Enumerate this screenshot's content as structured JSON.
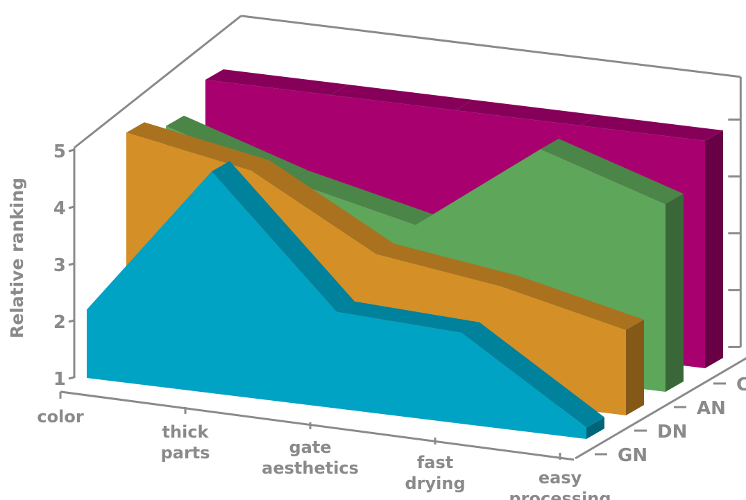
{
  "chart_data": {
    "type": "area",
    "title": "",
    "ylabel": "Relative ranking",
    "ylim": [
      1,
      5
    ],
    "yticks": [
      1,
      2,
      3,
      4,
      5
    ],
    "categories": [
      "color",
      "thick parts",
      "gate aesthetics",
      "fast drying",
      "easy processing"
    ],
    "category_lines": [
      [
        "color"
      ],
      [
        "thick",
        "parts"
      ],
      [
        "gate",
        "aesthetics"
      ],
      [
        "fast",
        "drying"
      ],
      [
        "easy",
        "processing"
      ]
    ],
    "series_labels": [
      "GN",
      "DN",
      "AN",
      "CN"
    ],
    "series": [
      {
        "name": "GN",
        "values": [
          2.2,
          4.9,
          2.7,
          2.6,
          1.2
        ],
        "color": "#00a3c4"
      },
      {
        "name": "DN",
        "values": [
          4.9,
          4.5,
          3.3,
          3.0,
          2.5
        ],
        "color": "#d58f27"
      },
      {
        "name": "AN",
        "values": [
          4.6,
          3.9,
          3.4,
          5.0,
          4.3
        ],
        "color": "#5ea65a"
      },
      {
        "name": "CN",
        "values": [
          5.0,
          5.0,
          5.0,
          5.0,
          5.0
        ],
        "color": "#a8006f"
      }
    ],
    "grid": false,
    "legend": "none"
  }
}
